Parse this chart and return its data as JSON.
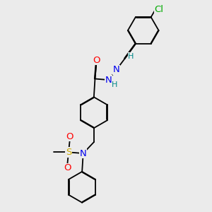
{
  "background_color": "#ebebeb",
  "bond_color": "#000000",
  "atom_colors": {
    "N": "#0000ee",
    "O": "#ff0000",
    "S": "#ccaa00",
    "Cl": "#00aa00",
    "H": "#008888"
  },
  "font_size_large": 9.5,
  "font_size_small": 8.0
}
